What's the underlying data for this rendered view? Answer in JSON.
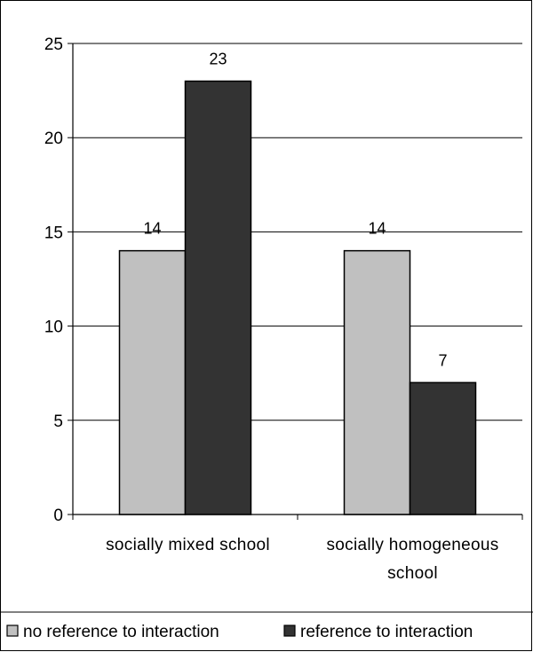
{
  "chart_data": {
    "type": "bar",
    "categories": [
      "socially mixed school",
      "socially homogeneous school"
    ],
    "category_lines": [
      [
        "socially mixed school"
      ],
      [
        "socially homogeneous",
        "school"
      ]
    ],
    "series": [
      {
        "name": "no reference to interaction",
        "values": [
          14,
          14
        ],
        "color": "#c0c0c0"
      },
      {
        "name": "reference to interaction",
        "values": [
          23,
          7
        ],
        "color": "#333333"
      }
    ],
    "ylim": [
      0,
      25
    ],
    "yticks": [
      0,
      5,
      10,
      15,
      20,
      25
    ],
    "grid": true,
    "legend_position": "bottom",
    "title": "",
    "xlabel": "",
    "ylabel": ""
  }
}
